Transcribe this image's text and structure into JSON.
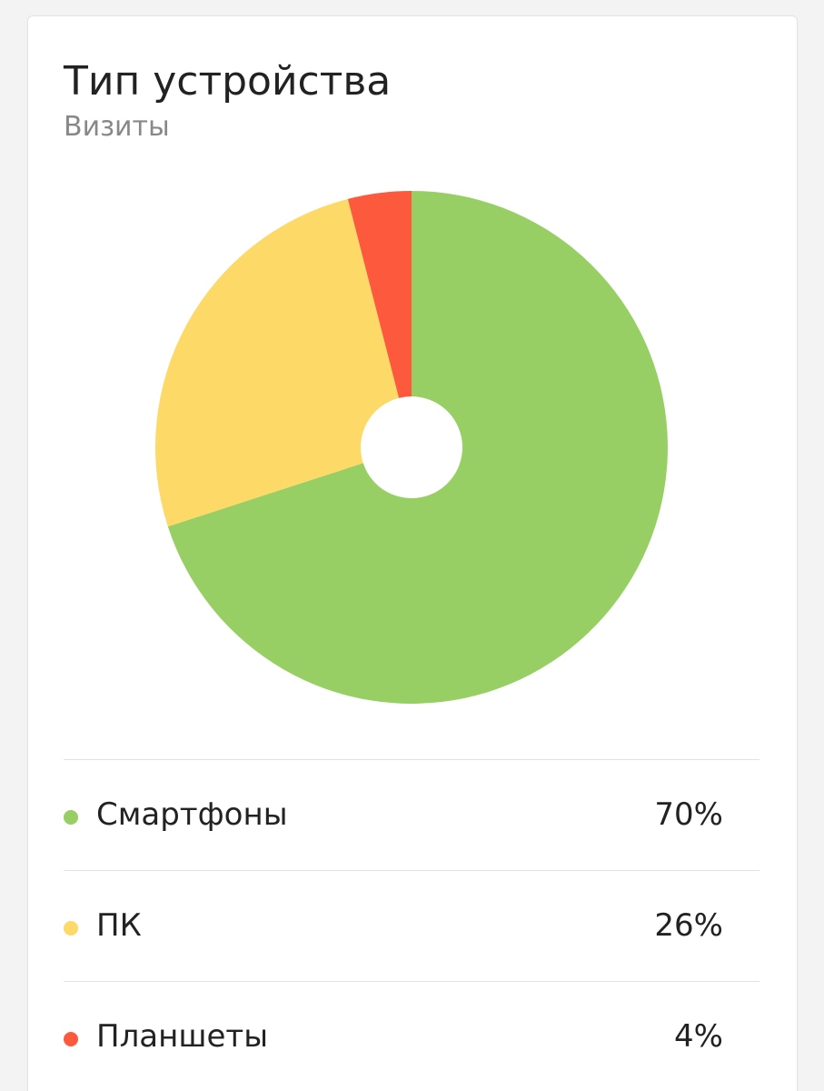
{
  "card": {
    "title": "Тип устройства",
    "subtitle": "Визиты"
  },
  "chart_data": {
    "type": "pie",
    "title": "Тип устройства",
    "subtitle": "Визиты",
    "donut": true,
    "legend_placement": "bottom",
    "categories": [
      "Смартфоны",
      "ПК",
      "Планшеты"
    ],
    "values": [
      70,
      26,
      4
    ],
    "colors": [
      "#97cf65",
      "#fdda67",
      "#fd5a3d"
    ]
  },
  "legend": {
    "items": [
      {
        "label": "Смартфоны",
        "value": "70%",
        "color": "#97cf65"
      },
      {
        "label": "ПК",
        "value": "26%",
        "color": "#fdda67"
      },
      {
        "label": "Планшеты",
        "value": "4%",
        "color": "#fd5a3d"
      }
    ]
  }
}
